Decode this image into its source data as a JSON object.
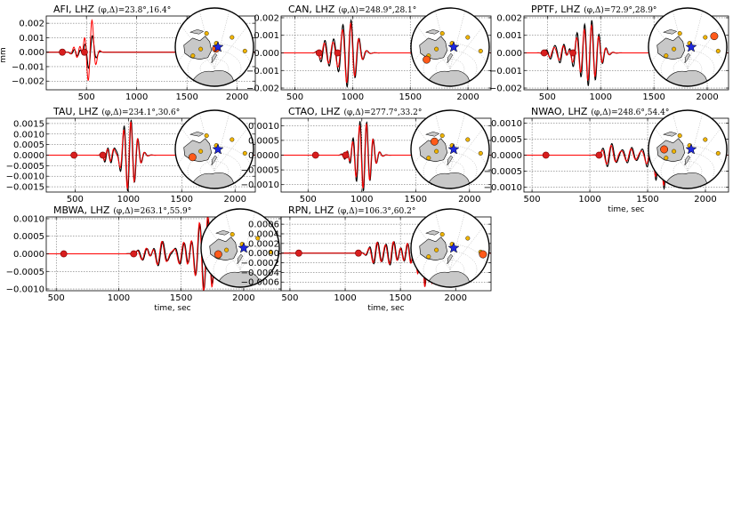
{
  "chart_data": [
    {
      "type": "line",
      "station": "AFI",
      "title": "AFI, LHZ",
      "title_math": "(φ,Δ)=23.8°,16.4°",
      "ylabel": "mm",
      "xlabel": "",
      "xlim": [
        100,
        2180
      ],
      "ylim": [
        -0.0026,
        0.0025
      ],
      "xticks": [
        500,
        1000,
        1500,
        2000
      ],
      "yticks": [
        0.002,
        0.001,
        0.0,
        -0.001,
        -0.002
      ],
      "ytick_labels": [
        "0.002",
        "0.001",
        "0.000",
        "−0.001",
        "−0.002"
      ],
      "markers": [
        {
          "time": 260,
          "size": "small"
        },
        {
          "time": 480,
          "size": "small"
        }
      ],
      "wave": {
        "start": 300,
        "center": 540,
        "width": 55,
        "period": 85,
        "amp": 0.0013,
        "syn_amp": 0.0024,
        "end": 1500
      },
      "inset": {
        "station": [
          0.52,
          0.52
        ],
        "size": "large"
      }
    },
    {
      "type": "line",
      "station": "CAN",
      "title": "CAN, LHZ",
      "title_math": "(φ,Δ)=248.9°,28.1°",
      "ylabel": "",
      "xlabel": "",
      "xlim": [
        380,
        2200
      ],
      "ylim": [
        -0.0021,
        0.0021
      ],
      "xticks": [
        500,
        1000,
        1500,
        2000
      ],
      "yticks": [
        0.002,
        0.001,
        0.0,
        -0.001,
        -0.002
      ],
      "ytick_labels": [
        "0.002",
        "0.001",
        "0.000",
        "−0.001",
        "−0.002"
      ],
      "markers": [
        {
          "time": 710,
          "size": "small"
        },
        {
          "time": 870,
          "size": "small"
        }
      ],
      "wave": {
        "start": 650,
        "center": 970,
        "width": 95,
        "period": 70,
        "amp": 0.0019,
        "syn_amp": 0.0017,
        "end": 1700
      },
      "inset": {
        "station": [
          0.2,
          0.66
        ],
        "size": "large"
      }
    },
    {
      "type": "line",
      "station": "PPTF",
      "title": "PPTF, LHZ",
      "title_math": "(φ,Δ)=72.9°,28.9°",
      "ylabel": "",
      "xlabel": "",
      "xlim": [
        280,
        2200
      ],
      "ylim": [
        -0.0021,
        0.0021
      ],
      "xticks": [
        500,
        1000,
        1500,
        2000
      ],
      "yticks": [
        0.002,
        0.001,
        0.0,
        -0.001,
        -0.002
      ],
      "ytick_labels": [
        "0.002",
        "0.001",
        "0.000",
        "−0.001",
        "−0.002"
      ],
      "markers": [
        {
          "time": 470,
          "size": "small"
        },
        {
          "time": 740,
          "size": "small"
        }
      ],
      "wave": {
        "start": 380,
        "center": 900,
        "width": 110,
        "period": 68,
        "amp": 0.0019,
        "syn_amp": 0.0016,
        "end": 1800
      },
      "inset": {
        "station": [
          0.84,
          0.36
        ],
        "size": "large"
      }
    },
    {
      "type": "line",
      "station": "TAU",
      "title": "TAU, LHZ",
      "title_math": "(φ,Δ)=234.1°,30.6°",
      "ylabel": "",
      "xlabel": "",
      "xlim": [
        230,
        2190
      ],
      "ylim": [
        -0.00175,
        0.00175
      ],
      "xticks": [
        500,
        1000,
        1500,
        2000
      ],
      "yticks": [
        0.0015,
        0.001,
        0.0005,
        0.0,
        -0.0005,
        -0.001,
        -0.0015
      ],
      "ytick_labels": [
        "0.0015",
        "0.0010",
        "0.0005",
        "0.0000",
        "−0.0005",
        "−0.0010",
        "−0.0015"
      ],
      "markers": [
        {
          "time": 490,
          "size": "small"
        },
        {
          "time": 760,
          "size": "small"
        }
      ],
      "wave": {
        "start": 700,
        "center": 1010,
        "width": 90,
        "period": 65,
        "amp": 0.0017,
        "syn_amp": 0.0016,
        "end": 1800
      },
      "inset": {
        "station": [
          0.22,
          0.6
        ],
        "size": "large"
      }
    },
    {
      "type": "line",
      "station": "CTAO",
      "title": "CTAO, LHZ",
      "title_math": "(φ,Δ)=277.7°,33.2°",
      "ylabel": "",
      "xlabel": "",
      "xlim": [
        250,
        2200
      ],
      "ylim": [
        -0.00125,
        0.00125
      ],
      "xticks": [
        500,
        1000,
        1500,
        2000
      ],
      "yticks": [
        0.001,
        0.0005,
        0.0,
        -0.0005,
        -0.001
      ],
      "ytick_labels": [
        "0.0010",
        "0.0005",
        "0.0000",
        "−0.0005",
        "−0.0010"
      ],
      "markers": [
        {
          "time": 570,
          "size": "small"
        },
        {
          "time": 850,
          "size": "small"
        }
      ],
      "wave": {
        "start": 780,
        "center": 1030,
        "width": 90,
        "period": 62,
        "amp": 0.00112,
        "syn_amp": 0.00105,
        "end": 1800
      },
      "inset": {
        "station": [
          0.3,
          0.4
        ],
        "size": "large"
      }
    },
    {
      "type": "line",
      "station": "NWAO",
      "title": "NWAO, LHZ",
      "title_math": "(φ,Δ)=248.6°,54.4°",
      "ylabel": "",
      "xlabel": "time, sec",
      "xlim": [
        430,
        2200
      ],
      "ylim": [
        -0.00115,
        0.00115
      ],
      "xticks": [
        500,
        1000,
        1500,
        2000
      ],
      "yticks": [
        0.001,
        0.0005,
        0.0,
        -0.0005,
        -0.001
      ],
      "ytick_labels": [
        "0.0010",
        "0.0005",
        "0.0000",
        "−0.0005",
        "−0.0010"
      ],
      "markers": [
        {
          "time": 620,
          "size": "small"
        },
        {
          "time": 1080,
          "size": "small"
        }
      ],
      "wave": {
        "start": 1000,
        "center": 1660,
        "width": 130,
        "period": 70,
        "amp": 0.00105,
        "syn_amp": 0.00095,
        "end": 2000
      },
      "inset": {
        "station": [
          0.2,
          0.5
        ],
        "size": "large"
      }
    },
    {
      "type": "line",
      "station": "MBWA",
      "title": "MBWA, LHZ",
      "title_math": "(φ,Δ)=263.1°,55.9°",
      "ylabel": "",
      "xlabel": "time, sec",
      "xlim": [
        420,
        2300
      ],
      "ylim": [
        -0.00105,
        0.00105
      ],
      "xticks": [
        500,
        1000,
        1500,
        2000
      ],
      "yticks": [
        0.001,
        0.0005,
        0.0,
        -0.0005,
        -0.001
      ],
      "ytick_labels": [
        "0.0010",
        "0.0005",
        "0.0000",
        "−0.0005",
        "−0.0010"
      ],
      "markers": [
        {
          "time": 560,
          "size": "small"
        },
        {
          "time": 1120,
          "size": "small"
        }
      ],
      "wave": {
        "start": 1000,
        "center": 1700,
        "width": 120,
        "period": 68,
        "amp": 0.00102,
        "syn_amp": 0.0011,
        "end": 2100
      },
      "inset": {
        "station": [
          0.22,
          0.58
        ],
        "size": "large"
      }
    },
    {
      "type": "line",
      "station": "RPN",
      "title": "RPN, LHZ",
      "title_math": "(φ,Δ)=106.3°,60.2°",
      "ylabel": "",
      "xlabel": "time, sec",
      "xlim": [
        420,
        2320
      ],
      "ylim": [
        -0.00078,
        0.00075
      ],
      "xticks": [
        500,
        1000,
        1500,
        2000
      ],
      "yticks": [
        0.0006,
        0.0004,
        0.0002,
        0.0,
        -0.0002,
        -0.0004,
        -0.0006
      ],
      "ytick_labels": [
        "0.0006",
        "0.0004",
        "0.0002",
        "0.0000",
        "−0.0002",
        "−0.0004",
        "−0.0006"
      ],
      "markers": [
        {
          "time": 580,
          "size": "small"
        },
        {
          "time": 1120,
          "size": "small"
        }
      ],
      "wave": {
        "start": 1050,
        "center": 1740,
        "width": 120,
        "period": 66,
        "amp": 0.00068,
        "syn_amp": 0.00072,
        "end": 2100
      },
      "inset": {
        "station": [
          0.92,
          0.58
        ],
        "size": "large"
      }
    }
  ]
}
